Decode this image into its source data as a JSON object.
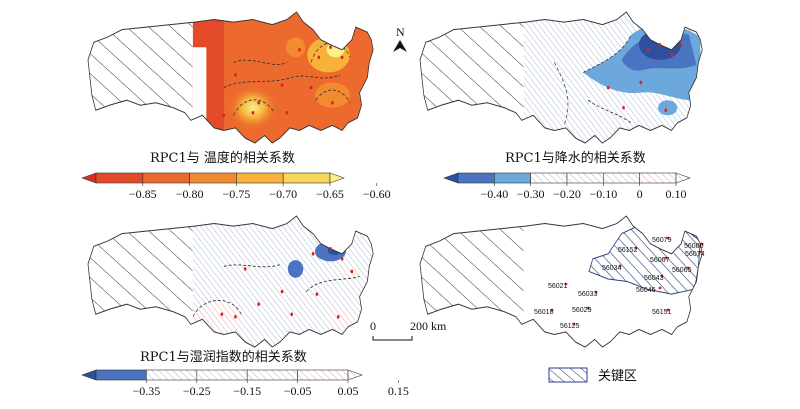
{
  "north_label": "N",
  "panels": [
    {
      "id": "temp",
      "title": "RPC1与 温度的相关系数",
      "legend_ticks": [
        "−0.85",
        "−0.80",
        "−0.75",
        "−0.70",
        "−0.65",
        "−0.60"
      ],
      "legend_colors": [
        "#d7301f",
        "#e34a2a",
        "#ec6a2d",
        "#f28a30",
        "#f6b23b",
        "#f9d55a",
        "#fbf08a"
      ]
    },
    {
      "id": "precip",
      "title": "RPC1与降水的相关系数",
      "legend_ticks": [
        "−0.40",
        "−0.30",
        "−0.20",
        "−0.10",
        "0",
        "0.10"
      ],
      "legend_colors": [
        "#2c4f9e",
        "#4a74c2",
        "#6ca8dc",
        "#ffffff",
        "#ffffff",
        "#ffffff",
        "#ffffff",
        "#ffffff"
      ]
    },
    {
      "id": "humid",
      "title": "RPC1与湿润指数的相关系数",
      "legend_ticks": [
        "−0.35",
        "−0.25",
        "−0.15",
        "−0.05",
        "0.05",
        "0.15"
      ],
      "legend_colors": [
        "#2c4f9e",
        "#4a74c2",
        "#ffffff",
        "#ffffff",
        "#ffffff",
        "#ffffff",
        "#ffffff"
      ]
    }
  ],
  "scale_bar": {
    "left": "0",
    "right": "200 km"
  },
  "key_region_legend": "关键区",
  "stations": [
    "56021",
    "56033",
    "56034",
    "56043",
    "56046",
    "56065",
    "56067",
    "56074",
    "56079",
    "56080",
    "56152",
    "56018",
    "56029",
    "56125",
    "56151"
  ]
}
